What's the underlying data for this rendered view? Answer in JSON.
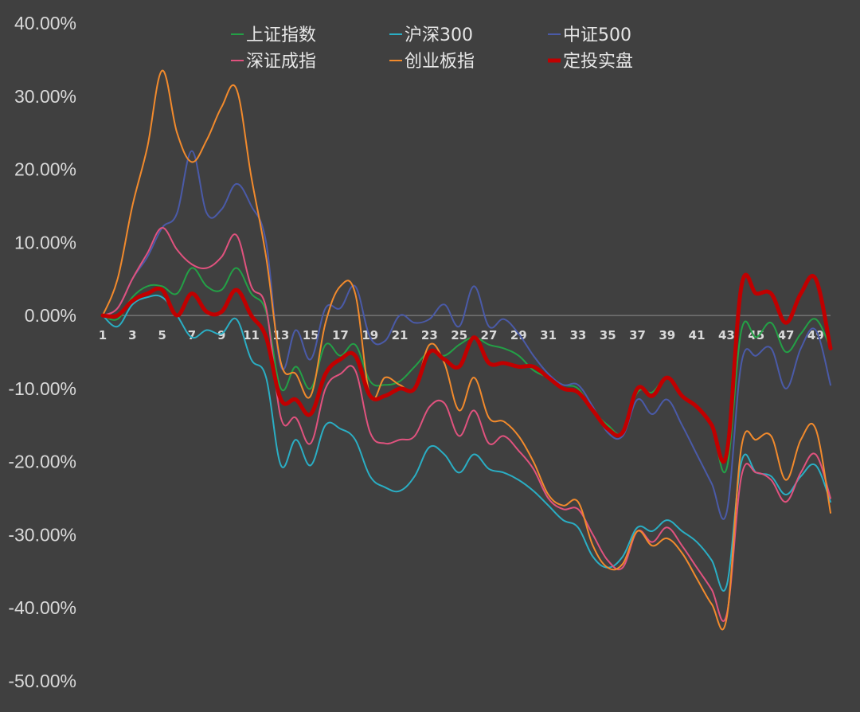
{
  "chart_data": {
    "type": "line",
    "x": [
      1,
      2,
      3,
      4,
      5,
      6,
      7,
      8,
      9,
      10,
      11,
      12,
      13,
      14,
      15,
      16,
      17,
      18,
      19,
      20,
      21,
      22,
      23,
      24,
      25,
      26,
      27,
      28,
      29,
      30,
      31,
      32,
      33,
      34,
      35,
      36,
      37,
      38,
      39,
      40,
      41,
      42,
      43,
      44,
      45,
      46,
      47,
      48,
      49,
      50
    ],
    "x_tick_labels": [
      "1",
      "3",
      "5",
      "7",
      "9",
      "11",
      "13",
      "15",
      "17",
      "19",
      "21",
      "23",
      "25",
      "27",
      "29",
      "31",
      "33",
      "35",
      "37",
      "39",
      "41",
      "43",
      "45",
      "47",
      "49"
    ],
    "y_tick_labels": [
      "40.00%",
      "30.00%",
      "20.00%",
      "10.00%",
      "0.00%",
      "-10.00%",
      "-20.00%",
      "-30.00%",
      "-40.00%",
      "-50.00%"
    ],
    "ylim": [
      -50,
      40
    ],
    "y_unit": "%",
    "grid": false,
    "legend_position": "top",
    "series": [
      {
        "name": "上证指数",
        "color": "#23a046",
        "width": 2,
        "values": [
          0,
          -0.5,
          2.5,
          4,
          4,
          3,
          6.5,
          4,
          3.5,
          6.5,
          3,
          0.5,
          -10,
          -7,
          -10,
          -4,
          -5.5,
          -4,
          -9,
          -9.5,
          -9,
          -7,
          -5,
          -5.5,
          -4,
          -3,
          -4,
          -4.5,
          -5.5,
          -7.5,
          -8.5,
          -9.5,
          -10,
          -13,
          -15,
          -16,
          -10.5,
          -10.5,
          -8.5,
          -11,
          -12.5,
          -15,
          -21,
          -2,
          -3,
          -1,
          -5,
          -2.5,
          -0.5,
          -4.5
        ]
      },
      {
        "name": "沪深300",
        "color": "#2aaec4",
        "width": 2,
        "values": [
          0,
          -1.5,
          1.5,
          2.5,
          2.5,
          0,
          -3,
          -2,
          -2.5,
          -0.5,
          -6,
          -8.5,
          -20.5,
          -17,
          -20.5,
          -15,
          -15.5,
          -17,
          -22,
          -23.5,
          -24,
          -22,
          -18,
          -19,
          -21.5,
          -19,
          -21,
          -21.5,
          -22.5,
          -24,
          -26,
          -28,
          -29,
          -33,
          -34.5,
          -33,
          -29,
          -29.5,
          -28,
          -29.5,
          -31,
          -33.5,
          -37,
          -20,
          -21.5,
          -22,
          -24.5,
          -22,
          -20.5,
          -25.5
        ]
      },
      {
        "name": "中证500",
        "color": "#4a5aa8",
        "width": 2,
        "values": [
          0,
          1,
          5,
          8,
          12,
          14,
          22.5,
          14,
          14.5,
          18,
          15,
          10,
          -7,
          -2,
          -6,
          1,
          1,
          4,
          -3,
          -3.5,
          0,
          -1,
          -0.5,
          1.5,
          -1.5,
          4,
          -1.5,
          -0.5,
          -2.5,
          -5.5,
          -8,
          -9.5,
          -9.5,
          -12.5,
          -16,
          -16.5,
          -11.5,
          -13.5,
          -11.5,
          -15,
          -19,
          -23,
          -27,
          -6.5,
          -5.5,
          -4.5,
          -10,
          -4.5,
          -2,
          -9.5
        ]
      },
      {
        "name": "深证成指",
        "color": "#e0527e",
        "width": 2,
        "values": [
          0,
          1,
          5,
          8.5,
          12,
          9,
          7,
          6.5,
          8,
          11,
          4,
          1,
          -14,
          -14,
          -17.5,
          -10,
          -8,
          -7.5,
          -16,
          -17.5,
          -17,
          -16.5,
          -12.5,
          -12,
          -16.5,
          -13,
          -17.5,
          -16.5,
          -18.5,
          -21,
          -25,
          -26.5,
          -26.5,
          -30,
          -33.5,
          -34.5,
          -29.5,
          -31,
          -29,
          -31.5,
          -34.5,
          -37.5,
          -41,
          -22,
          -21.5,
          -22.5,
          -25.5,
          -21.5,
          -19,
          -25
        ]
      },
      {
        "name": "创业板指",
        "color": "#f28a2c",
        "width": 2,
        "values": [
          0,
          5,
          15,
          23,
          33.5,
          25,
          21,
          24,
          28.5,
          31,
          19,
          8,
          -6.5,
          -8,
          -11,
          -1,
          4,
          3,
          -11,
          -8.5,
          -9.5,
          -10,
          -4,
          -6.5,
          -13,
          -8.5,
          -14,
          -14.5,
          -16.5,
          -20,
          -24.5,
          -26,
          -25.5,
          -31.5,
          -34.5,
          -34,
          -29.5,
          -31.5,
          -30.5,
          -32.5,
          -36,
          -39.5,
          -41.5,
          -18,
          -17,
          -16.5,
          -22.5,
          -17,
          -15.5,
          -27
        ]
      },
      {
        "name": "定投实盘",
        "color": "#c00000",
        "width": 5,
        "values": [
          0,
          0,
          2,
          3,
          3.5,
          0,
          3,
          0.5,
          0.5,
          3.5,
          0,
          -3,
          -11.5,
          -11.5,
          -13.5,
          -8,
          -6,
          -5.5,
          -11,
          -11,
          -10,
          -10,
          -5,
          -6,
          -7,
          -3,
          -6.5,
          -6.5,
          -7,
          -7,
          -8.5,
          -10,
          -10.5,
          -13,
          -15.5,
          -16,
          -10,
          -11,
          -8.5,
          -11,
          -12.5,
          -15,
          -19,
          4,
          3,
          3,
          -1,
          3,
          5,
          -4.5
        ]
      }
    ]
  }
}
